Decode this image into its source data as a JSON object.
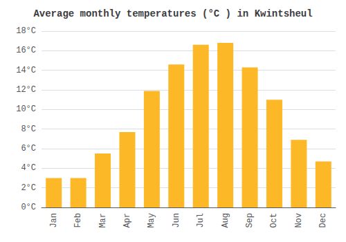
{
  "chart_data": {
    "type": "bar",
    "title": "Average monthly temperatures (°C ) in Kwintsheul",
    "categories": [
      "Jan",
      "Feb",
      "Mar",
      "Apr",
      "May",
      "Jun",
      "Jul",
      "Aug",
      "Sep",
      "Oct",
      "Nov",
      "Dec"
    ],
    "values": [
      3.0,
      3.0,
      5.5,
      7.7,
      11.9,
      14.6,
      16.6,
      16.8,
      14.3,
      11.0,
      6.9,
      4.7
    ],
    "color": "#FDB827",
    "ylim": [
      0,
      18
    ],
    "yticks": [
      {
        "value": 0,
        "label": "0°C"
      },
      {
        "value": 2,
        "label": "2°C"
      },
      {
        "value": 4,
        "label": "4°C"
      },
      {
        "value": 6,
        "label": "6°C"
      },
      {
        "value": 8,
        "label": "8°C"
      },
      {
        "value": 10,
        "label": "10°C"
      },
      {
        "value": 12,
        "label": "12°C"
      },
      {
        "value": 14,
        "label": "14°C"
      },
      {
        "value": 16,
        "label": "16°C"
      },
      {
        "value": 18,
        "label": "18°C"
      }
    ],
    "grid": true
  }
}
